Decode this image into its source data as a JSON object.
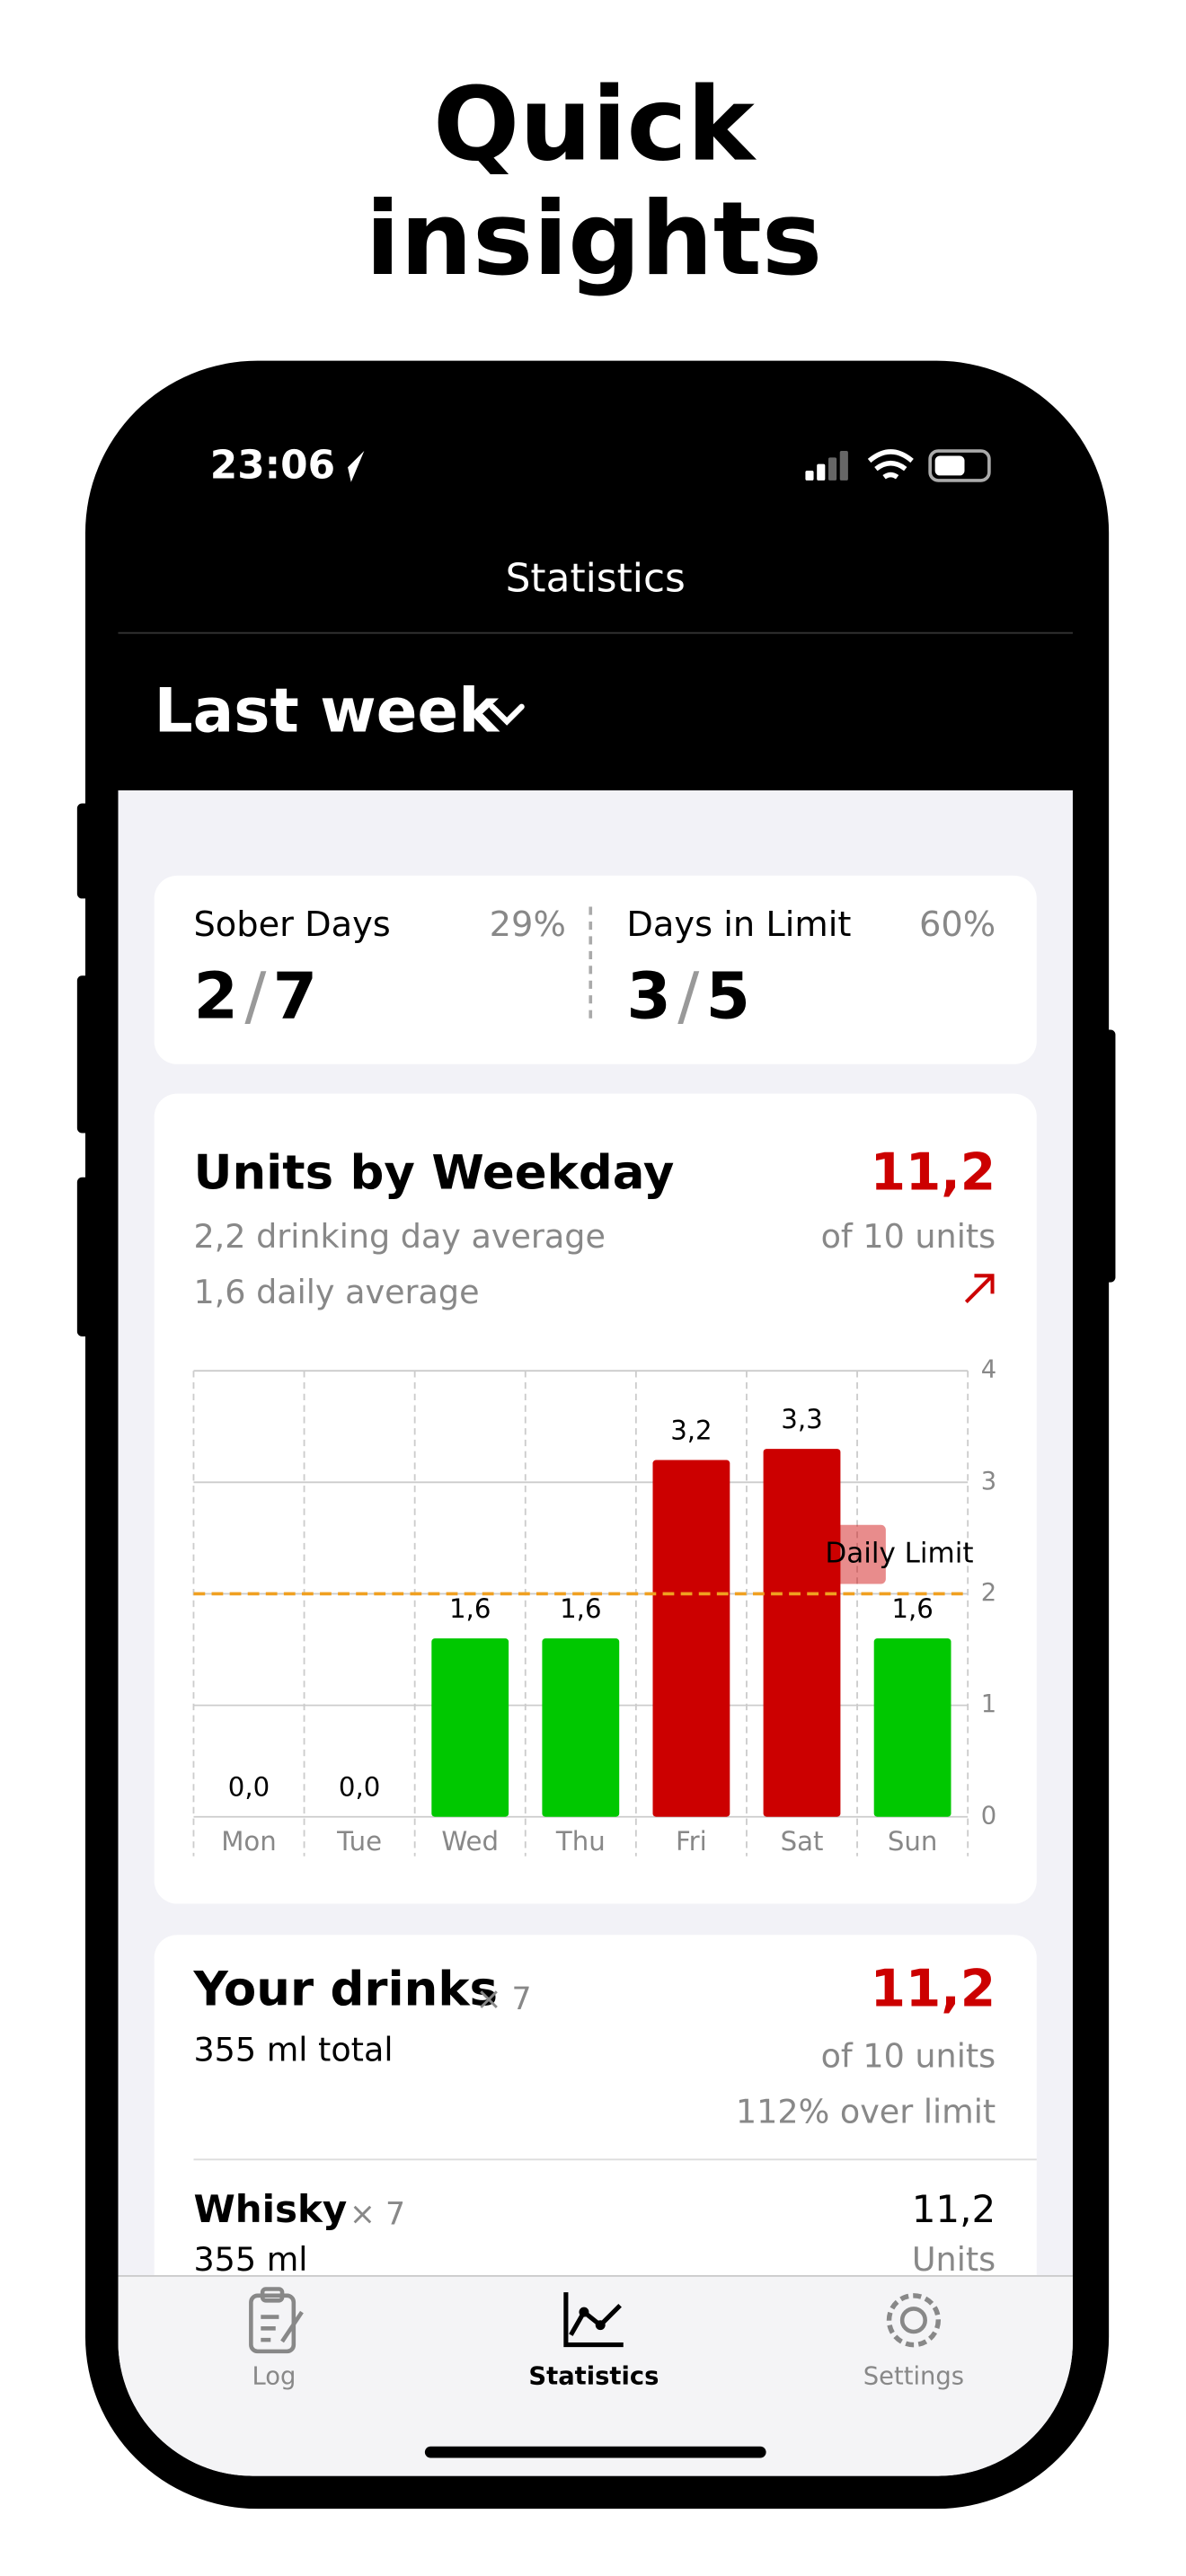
{
  "headline": {
    "line1": "Quick",
    "line2": "insights"
  },
  "status_bar": {
    "time": "23:06"
  },
  "nav_title": "Statistics",
  "period": "Last week",
  "summary": {
    "sober": {
      "label": "Sober Days",
      "percent": "29%",
      "count": "2",
      "separator": "/",
      "total": "7"
    },
    "limit": {
      "label": "Days in Limit",
      "percent": "60%",
      "count": "3",
      "separator": "/",
      "total": "5"
    }
  },
  "weekday_card": {
    "title": "Units by Weekday",
    "total": "11,2",
    "drinking_day_average": "2,2 drinking day average",
    "of_units": "of 10 units",
    "daily_average": "1,6 daily average"
  },
  "chart_data": {
    "type": "bar",
    "categories": [
      "Mon",
      "Tue",
      "Wed",
      "Thu",
      "Fri",
      "Sat",
      "Sun"
    ],
    "values": [
      0,
      0,
      1.6,
      1.6,
      3.2,
      3.3,
      1.6
    ],
    "value_labels": [
      "0,0",
      "0,0",
      "1,6",
      "1,6",
      "3,2",
      "3,3",
      "1,6"
    ],
    "colors": [
      "#00c800",
      "#00c800",
      "#00c800",
      "#00c800",
      "#cc0000",
      "#cc0000",
      "#00c800"
    ],
    "ylim": [
      0,
      4
    ],
    "yticks": [
      0,
      1,
      2,
      3,
      4
    ],
    "grid": true,
    "limit": {
      "value": 2,
      "label": "Daily Limit",
      "color": "#f0a020"
    }
  },
  "drinks_card": {
    "title": "Your drinks",
    "count": "× 7",
    "volume": "355 ml total",
    "total": "11,2",
    "of_units": "of 10 units",
    "over": "112% over limit",
    "items": [
      {
        "name": "Whisky",
        "count": "× 7",
        "volume": "355 ml",
        "units": "11,2",
        "units_label": "Units"
      }
    ]
  },
  "tab_bar": {
    "log": "Log",
    "statistics": "Statistics",
    "settings": "Settings"
  }
}
